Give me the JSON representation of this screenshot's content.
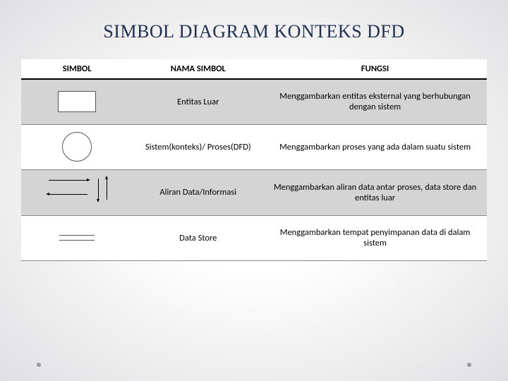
{
  "title": "SIMBOL DIAGRAM KONTEKS DFD",
  "table": {
    "columns": [
      "SIMBOL",
      "NAMA SIMBOL",
      "FUNGSI"
    ],
    "col_widths": [
      "24%",
      "28%",
      "48%"
    ],
    "header_bg": "#ffffff",
    "header_border": "#000000",
    "row_shaded_bg": "#d4d4d4",
    "row_plain_bg": "#ffffff",
    "border_color": "#888888",
    "font_size": 12.5,
    "rows": [
      {
        "shaded": true,
        "symbol_type": "rectangle",
        "nama": "Entitas Luar",
        "fungsi": "Menggambarkan entitas eksternal yang berhubungan dengan sistem"
      },
      {
        "shaded": false,
        "symbol_type": "circle",
        "nama": "Sistem(konteks)/ Proses(DFD)",
        "fungsi": "Menggambarkan proses yang ada dalam suatu sistem"
      },
      {
        "shaded": true,
        "symbol_type": "arrows",
        "nama": "Aliran Data/Informasi",
        "fungsi": "Menggambarkan aliran data antar proses, data store dan entitas luar"
      },
      {
        "shaded": false,
        "symbol_type": "datastore",
        "nama": "Data Store",
        "fungsi": "Menggambarkan tempat penyimpanan data di dalam sistem"
      }
    ]
  },
  "styling": {
    "title_color": "#203050",
    "title_fontsize": 26,
    "title_font": "Georgia",
    "bg_gradient_center": "#ffffff",
    "bg_gradient_edge": "#e0e0e2",
    "symbol_border": "#555555",
    "decor_dot_color": "#9a9a9a"
  }
}
